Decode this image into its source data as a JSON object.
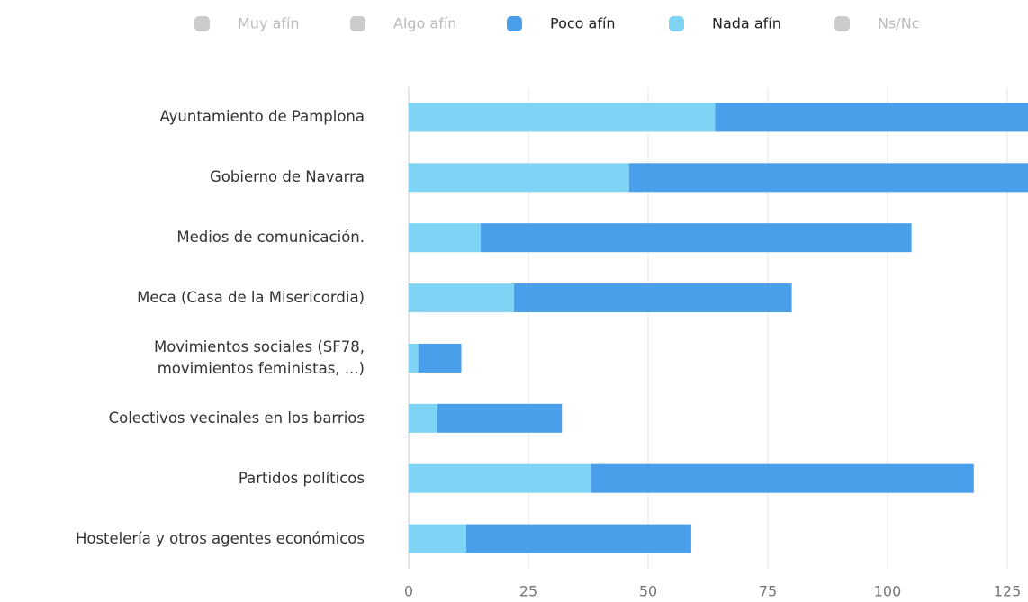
{
  "chart_data": {
    "type": "stacked-hbar",
    "categories": [
      "Ayuntamiento de Pamplona",
      "Gobierno de Navarra",
      "Medios de comunicación.",
      "Meca (Casa de la Misericordia)",
      "Movimientos sociales (SF78,\nmovimientos feministas, ...)",
      "Colectivos vecinales en los barrios",
      "Partidos políticos",
      "Hostelería y otros agentes económicos"
    ],
    "series": [
      {
        "name": "Muy afín",
        "color": "#cccccc",
        "hidden": true,
        "values": [
          null,
          null,
          null,
          null,
          null,
          null,
          null,
          null
        ]
      },
      {
        "name": "Algo afín",
        "color": "#cccccc",
        "hidden": true,
        "values": [
          null,
          null,
          null,
          null,
          null,
          null,
          null,
          null
        ]
      },
      {
        "name": "Poco afín",
        "color": "#4a9fea",
        "hidden": false,
        "stack_order": 2,
        "values": [
          70,
          86,
          90,
          58,
          9,
          26,
          80,
          47
        ]
      },
      {
        "name": "Nada afín",
        "color": "#7fd4f6",
        "hidden": false,
        "stack_order": 1,
        "values": [
          64,
          46,
          15,
          22,
          2,
          6,
          38,
          12
        ]
      },
      {
        "name": "Ns/Nc",
        "color": "#cccccc",
        "hidden": true,
        "values": [
          null,
          null,
          null,
          null,
          null,
          null,
          null,
          null
        ]
      }
    ],
    "xlim": [
      0,
      129.3
    ],
    "xticks": [
      0,
      25,
      50,
      75,
      100,
      125
    ],
    "grid": true
  }
}
